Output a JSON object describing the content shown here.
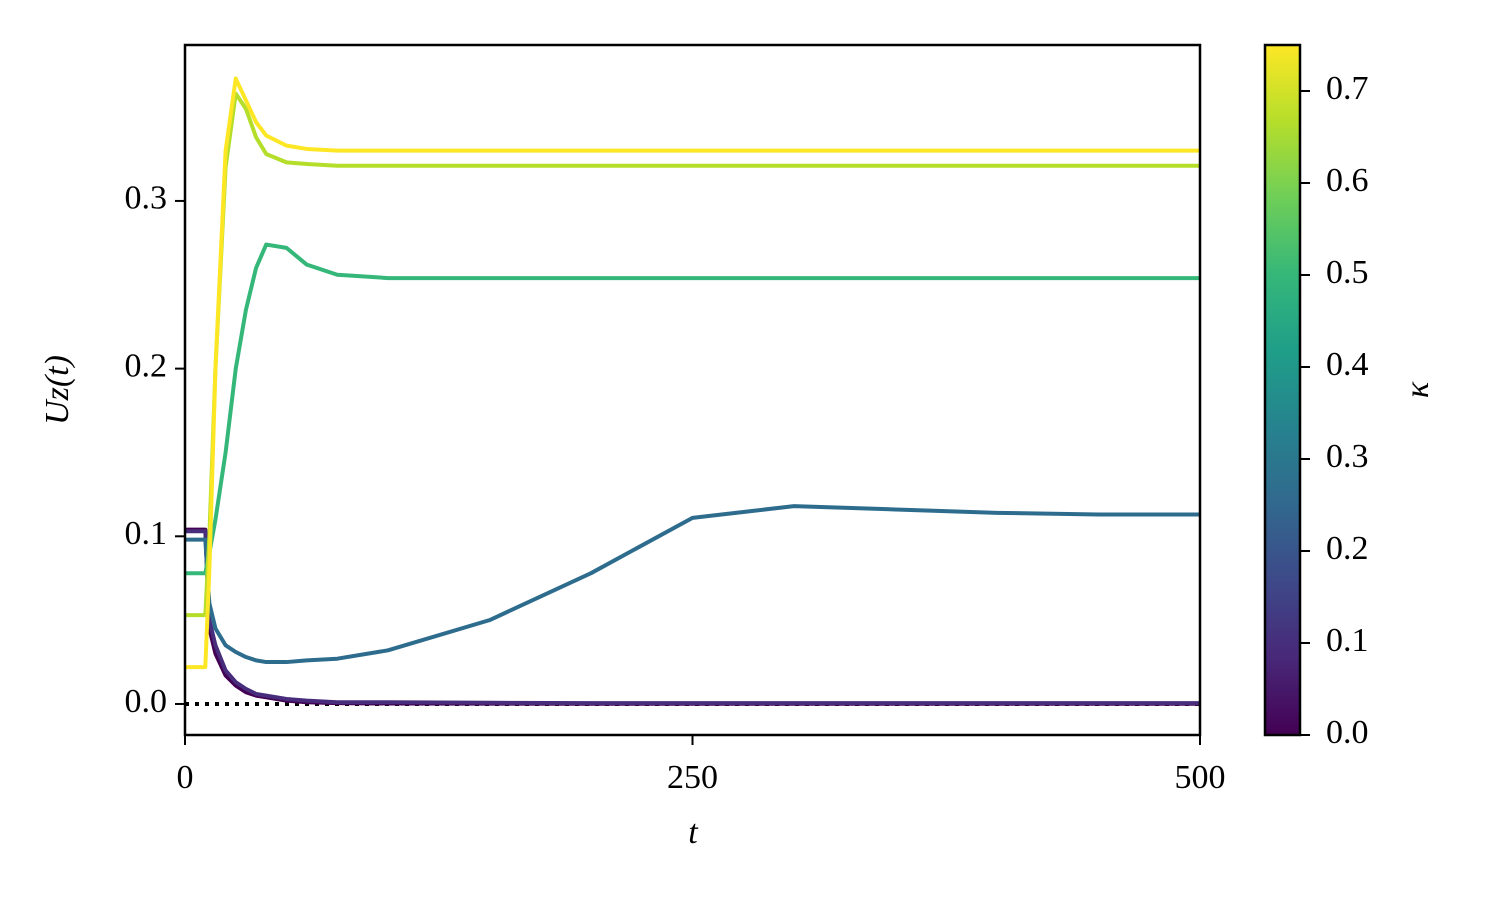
{
  "chart_data": {
    "type": "line",
    "x_label": "t",
    "y_label": "Uz(t)",
    "xlim": [
      0,
      500
    ],
    "ylim": [
      -0.0185,
      0.393
    ],
    "xticks": [
      0,
      250,
      500
    ],
    "yticks": [
      {
        "value": 0,
        "label": "0.0"
      },
      0.1,
      0.2,
      0.3
    ],
    "reference_line": {
      "y": 0,
      "style": "dotted",
      "color": "#000000"
    },
    "x": [
      0,
      10,
      12,
      15,
      20,
      25,
      30,
      35,
      40,
      50,
      60,
      75,
      100,
      150,
      200,
      250,
      300,
      350,
      400,
      450,
      500
    ],
    "series": [
      {
        "color": "#440154",
        "values": [
          0.104,
          0.104,
          0.045,
          0.03,
          0.017,
          0.011,
          0.007,
          0.005,
          0.004,
          0.002,
          0.001,
          0.0005,
          0.0003,
          0.0002,
          0.0001,
          0.0001,
          0.0001,
          0.0001,
          0.0001,
          0.0001,
          0.0001
        ]
      },
      {
        "color": "#472d7b",
        "values": [
          0.103,
          0.103,
          0.05,
          0.035,
          0.02,
          0.013,
          0.009,
          0.006,
          0.005,
          0.003,
          0.002,
          0.001,
          0.001,
          0.0007,
          0.0005,
          0.0005,
          0.0005,
          0.0005,
          0.0005,
          0.0005,
          0.0005
        ]
      },
      {
        "color": "#2e6c8e",
        "values": [
          0.098,
          0.098,
          0.06,
          0.045,
          0.035,
          0.031,
          0.028,
          0.026,
          0.025,
          0.025,
          0.026,
          0.027,
          0.032,
          0.05,
          0.078,
          0.111,
          0.118,
          0.116,
          0.114,
          0.113,
          0.113
        ]
      },
      {
        "color": "#35b779",
        "values": [
          0.078,
          0.078,
          0.09,
          0.11,
          0.15,
          0.2,
          0.235,
          0.26,
          0.274,
          0.272,
          0.262,
          0.256,
          0.254,
          0.254,
          0.254,
          0.254,
          0.254,
          0.254,
          0.254,
          0.254,
          0.254
        ]
      },
      {
        "color": "#b5de2b",
        "values": [
          0.053,
          0.053,
          0.1,
          0.2,
          0.32,
          0.364,
          0.355,
          0.338,
          0.328,
          0.323,
          0.322,
          0.321,
          0.321,
          0.321,
          0.321,
          0.321,
          0.321,
          0.321,
          0.321,
          0.321,
          0.321
        ]
      },
      {
        "color": "#fde725",
        "values": [
          0.022,
          0.022,
          0.08,
          0.2,
          0.33,
          0.373,
          0.36,
          0.347,
          0.339,
          0.333,
          0.331,
          0.33,
          0.33,
          0.33,
          0.33,
          0.33,
          0.33,
          0.33,
          0.33,
          0.33,
          0.33
        ]
      }
    ],
    "colorbar": {
      "label": "κ",
      "lim": [
        0,
        0.75
      ],
      "ticks": [
        {
          "value": 0,
          "label": "0.0"
        },
        0.1,
        0.2,
        0.3,
        0.4,
        0.5,
        0.6,
        0.7
      ],
      "colormap": [
        "#440154",
        "#482878",
        "#3e4989",
        "#31688e",
        "#26828e",
        "#1f9e89",
        "#35b779",
        "#6ece58",
        "#b5de2b",
        "#fde725"
      ]
    }
  }
}
